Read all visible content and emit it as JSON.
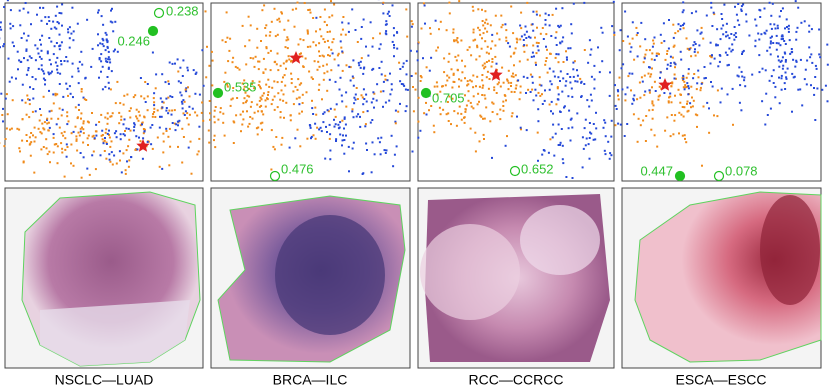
{
  "panels": [
    {
      "caption": "NSCLC—LUAD",
      "markers": [
        {
          "label": "0.238",
          "filled": false
        },
        {
          "label": "0.246",
          "filled": true
        }
      ]
    },
    {
      "caption": "BRCA—ILC",
      "markers": [
        {
          "label": "0.535",
          "filled": true
        },
        {
          "label": "0.476",
          "filled": false
        }
      ]
    },
    {
      "caption": "RCC—CCRCC",
      "markers": [
        {
          "label": "0.705",
          "filled": true
        },
        {
          "label": "0.652",
          "filled": false
        }
      ]
    },
    {
      "caption": "ESCA—ESCC",
      "markers": [
        {
          "label": "0.447",
          "filled": true
        },
        {
          "label": "0.078",
          "filled": false
        }
      ]
    }
  ]
}
